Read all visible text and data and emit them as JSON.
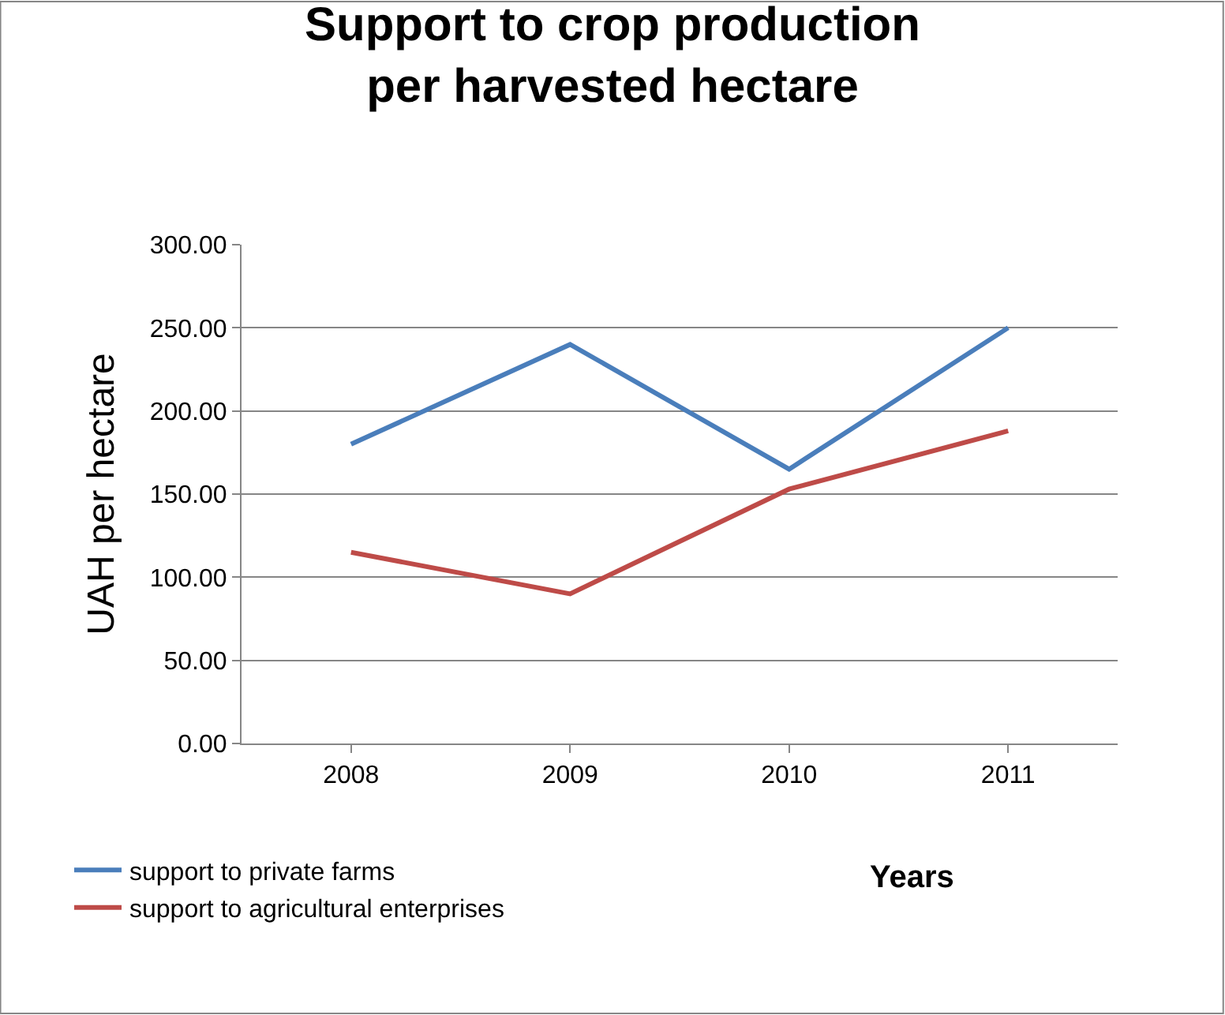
{
  "chart_data": {
    "type": "line",
    "title": "Support to crop production per harvested hectare",
    "xlabel": "Years",
    "ylabel": "UAH per hectare",
    "categories": [
      "2008",
      "2009",
      "2010",
      "2011"
    ],
    "series": [
      {
        "name": "support to private farms",
        "color": "#4a7ebb",
        "values": [
          180,
          240,
          165,
          250
        ]
      },
      {
        "name": "support to agricultural enterprises",
        "color": "#be4b48",
        "values": [
          115,
          90,
          153,
          188
        ]
      }
    ],
    "ylim": [
      0,
      300
    ],
    "yticks": [
      {
        "value": 0,
        "label": "0.00"
      },
      {
        "value": 50,
        "label": "50.00"
      },
      {
        "value": 100,
        "label": "100.00"
      },
      {
        "value": 150,
        "label": "150.00"
      },
      {
        "value": 200,
        "label": "200.00"
      },
      {
        "value": 250,
        "label": "250.00"
      },
      {
        "value": 300,
        "label": "300.00"
      }
    ],
    "grid": "y",
    "legend": "bottom",
    "marker": "none",
    "line_style": "solid"
  }
}
